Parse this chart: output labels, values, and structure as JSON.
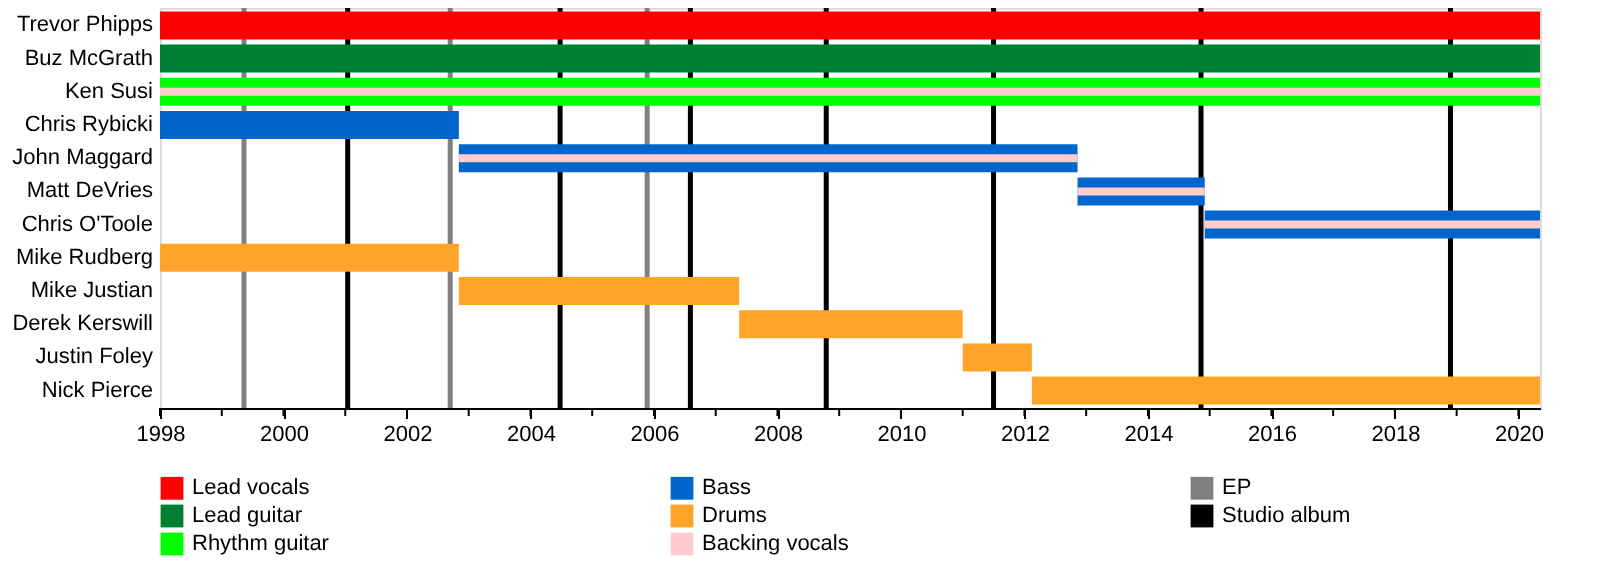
{
  "chart_data": {
    "type": "bar",
    "orientation": "horizontal",
    "categories": [
      "Trevor Phipps",
      "Buz McGrath",
      "Ken Susi",
      "Chris Rybicki",
      "John Maggard",
      "Matt DeVries",
      "Chris O'Toole",
      "Mike Rudberg",
      "Mike Justian",
      "Derek Kerswill",
      "Justin Foley",
      "Nick Pierce"
    ],
    "series": [
      {
        "name": "Lead vocals",
        "color": "#ff0000",
        "values": [
          22.35,
          null,
          null,
          null,
          null,
          null,
          null,
          null,
          null,
          null,
          null,
          null
        ],
        "base": [
          1998,
          null,
          null,
          null,
          null,
          null,
          null,
          null,
          null,
          null,
          null,
          null
        ]
      },
      {
        "name": "Lead guitar",
        "color": "#008033",
        "values": [
          null,
          22.35,
          null,
          null,
          null,
          null,
          null,
          null,
          null,
          null,
          null,
          null
        ],
        "base": [
          null,
          1998,
          null,
          null,
          null,
          null,
          null,
          null,
          null,
          null,
          null,
          null
        ]
      },
      {
        "name": "Rhythm guitar",
        "color": "#00ff00",
        "values": [
          null,
          null,
          22.35,
          null,
          null,
          null,
          null,
          null,
          null,
          null,
          null,
          null
        ],
        "base": [
          null,
          null,
          1998,
          null,
          null,
          null,
          null,
          null,
          null,
          null,
          null,
          null
        ]
      },
      {
        "name": "Bass",
        "color": "#0066cc",
        "values": [
          null,
          null,
          null,
          4.84,
          10.02,
          2.06,
          5.43,
          null,
          null,
          null,
          null,
          null
        ],
        "base": [
          null,
          null,
          null,
          1998,
          2002.84,
          2012.86,
          2014.92,
          null,
          null,
          null,
          null,
          null
        ]
      },
      {
        "name": "Drums",
        "color": "#ffa329",
        "values": [
          null,
          null,
          null,
          null,
          null,
          null,
          null,
          4.84,
          4.54,
          3.62,
          1.12,
          8.23
        ],
        "base": [
          null,
          null,
          null,
          null,
          null,
          null,
          null,
          1998,
          2002.84,
          2007.38,
          2011.0,
          2012.12
        ]
      },
      {
        "name": "Backing vocals",
        "color": "#ffcccc",
        "values": [
          null,
          null,
          22.35,
          null,
          10.02,
          2.06,
          5.43,
          null,
          null,
          null,
          null,
          null
        ],
        "base": [
          null,
          null,
          1998,
          null,
          2002.84,
          2012.86,
          2014.92,
          null,
          null,
          null,
          null,
          null
        ]
      }
    ],
    "xlim": [
      1998,
      2020.35
    ],
    "xticks": [
      1998,
      {
        "value": 1999,
        "label": null
      },
      2000,
      {
        "value": 2001,
        "label": null
      },
      2002,
      {
        "value": 2003,
        "label": null
      },
      2004,
      {
        "value": 2005,
        "label": null
      },
      2006,
      {
        "value": 2007,
        "label": null
      },
      2008,
      {
        "value": 2009,
        "label": null
      },
      2010,
      {
        "value": 2011,
        "label": null
      },
      2012,
      {
        "value": 2013,
        "label": null
      },
      2014,
      {
        "value": 2015,
        "label": null
      },
      2016,
      {
        "value": 2017,
        "label": null
      },
      2018,
      {
        "value": 2019,
        "label": null
      },
      2020
    ],
    "ref_lines": [
      {
        "axis": "x",
        "value": 1999.36,
        "label": "EP",
        "color": "#808080"
      },
      {
        "axis": "x",
        "value": 2001.04,
        "label": "Studio album",
        "color": "#000000"
      },
      {
        "axis": "x",
        "value": 2002.7,
        "label": null,
        "color": "#808080"
      },
      {
        "axis": "x",
        "value": 2004.48,
        "label": null,
        "color": "#000000"
      },
      {
        "axis": "x",
        "value": 2005.89,
        "label": null,
        "color": "#808080"
      },
      {
        "axis": "x",
        "value": 2006.59,
        "label": null,
        "color": "#000000"
      },
      {
        "axis": "x",
        "value": 2008.79,
        "label": null,
        "color": "#000000"
      },
      {
        "axis": "x",
        "value": 2011.5,
        "label": null,
        "color": "#000000"
      },
      {
        "axis": "x",
        "value": 2014.86,
        "label": null,
        "color": "#000000"
      },
      {
        "axis": "x",
        "value": 2018.9,
        "label": null,
        "color": "#000000"
      }
    ],
    "grid": false,
    "legend": "bottom"
  }
}
